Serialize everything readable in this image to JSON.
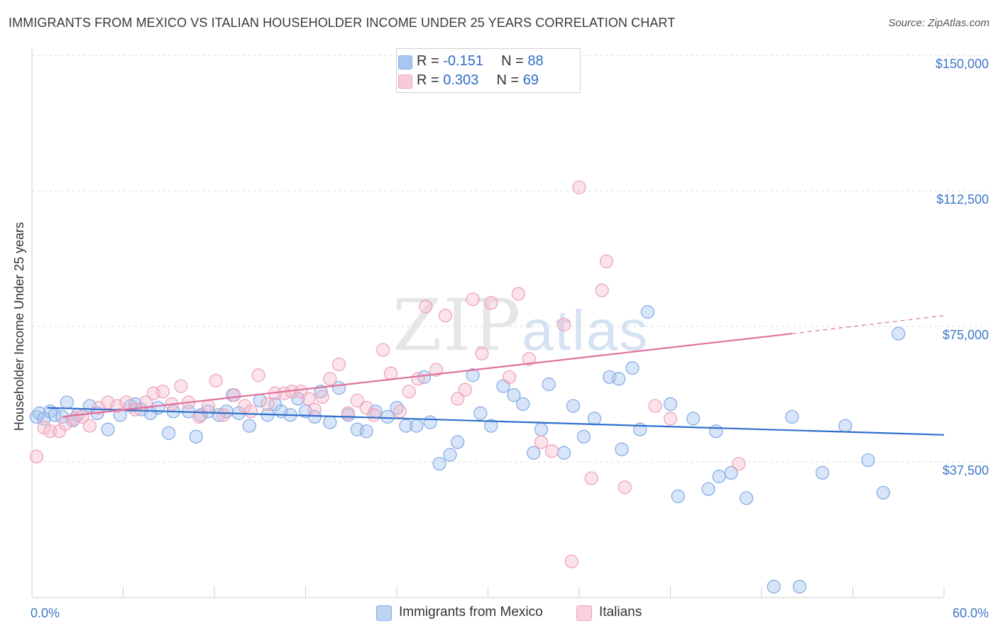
{
  "header": {
    "title": "IMMIGRANTS FROM MEXICO VS ITALIAN HOUSEHOLDER INCOME UNDER 25 YEARS CORRELATION CHART",
    "source": "Source: ZipAtlas.com"
  },
  "watermark": {
    "zip": "ZIP",
    "atlas": "atlas"
  },
  "legend": {
    "rows": [
      {
        "r_label": "R = ",
        "r_value": "-0.151",
        "n_label": "N = ",
        "n_value": "88",
        "color": "#a9c6ef"
      },
      {
        "r_label": "R = ",
        "r_value": "0.303",
        "n_label": "N = ",
        "n_value": "69",
        "color": "#f5b8cb"
      }
    ]
  },
  "bottom_legend": {
    "items": [
      {
        "label": "Immigrants from Mexico",
        "color": "#a9c6ef"
      },
      {
        "label": "Italians",
        "color": "#f5b8cb"
      }
    ]
  },
  "chart_data": {
    "type": "scatter",
    "ylabel": "Householder Income Under 25 years",
    "xlim": [
      0,
      60
    ],
    "ylim": [
      0,
      150000
    ],
    "x_tick_labels": [
      "0.0%",
      "60.0%"
    ],
    "y_ticks": [
      {
        "value": 37500,
        "label": "$37,500"
      },
      {
        "value": 75000,
        "label": "$75,000"
      },
      {
        "value": 112500,
        "label": "$112,500"
      },
      {
        "value": 150000,
        "label": "$150,000"
      }
    ],
    "grid": true,
    "series": [
      {
        "name": "Immigrants from Mexico",
        "color": "#6fa3e8",
        "trend": {
          "x0": 1,
          "y0": 52500,
          "x1": 60,
          "y1": 45000,
          "color": "#2f6fcc"
        },
        "points": [
          [
            0.3,
            50000
          ],
          [
            0.5,
            51000
          ],
          [
            0.8,
            49500
          ],
          [
            1.2,
            51500
          ],
          [
            1.5,
            50500
          ],
          [
            2.0,
            50000
          ],
          [
            2.3,
            54000
          ],
          [
            2.7,
            49000
          ],
          [
            3.0,
            50500
          ],
          [
            3.8,
            53000
          ],
          [
            4.3,
            51000
          ],
          [
            5.0,
            46500
          ],
          [
            5.8,
            50500
          ],
          [
            6.5,
            53000
          ],
          [
            6.8,
            53500
          ],
          [
            7.2,
            52000
          ],
          [
            7.8,
            51000
          ],
          [
            8.3,
            52500
          ],
          [
            9.0,
            45500
          ],
          [
            9.3,
            51500
          ],
          [
            10.3,
            51500
          ],
          [
            10.8,
            44500
          ],
          [
            11.1,
            50500
          ],
          [
            11.6,
            51500
          ],
          [
            12.3,
            50500
          ],
          [
            12.8,
            51500
          ],
          [
            13.2,
            56000
          ],
          [
            13.6,
            51000
          ],
          [
            14.3,
            47500
          ],
          [
            15.0,
            54500
          ],
          [
            15.5,
            50500
          ],
          [
            16.0,
            53500
          ],
          [
            16.4,
            51500
          ],
          [
            17.0,
            50500
          ],
          [
            17.5,
            55000
          ],
          [
            18.0,
            51500
          ],
          [
            18.6,
            50000
          ],
          [
            19.0,
            57000
          ],
          [
            19.6,
            48500
          ],
          [
            20.2,
            58000
          ],
          [
            20.8,
            50500
          ],
          [
            21.4,
            46500
          ],
          [
            22.0,
            46000
          ],
          [
            22.6,
            51500
          ],
          [
            23.4,
            50000
          ],
          [
            24.0,
            52500
          ],
          [
            24.6,
            47500
          ],
          [
            25.3,
            47500
          ],
          [
            25.8,
            61000
          ],
          [
            26.2,
            48500
          ],
          [
            26.8,
            37000
          ],
          [
            27.5,
            39500
          ],
          [
            28.0,
            43000
          ],
          [
            29.0,
            61500
          ],
          [
            29.5,
            51000
          ],
          [
            30.2,
            47500
          ],
          [
            31.0,
            58500
          ],
          [
            31.7,
            56000
          ],
          [
            32.3,
            53500
          ],
          [
            33.0,
            40000
          ],
          [
            33.5,
            46500
          ],
          [
            34.0,
            59000
          ],
          [
            35.0,
            40000
          ],
          [
            35.6,
            53000
          ],
          [
            36.3,
            44500
          ],
          [
            37.0,
            49500
          ],
          [
            38.0,
            61000
          ],
          [
            38.6,
            60500
          ],
          [
            38.8,
            41000
          ],
          [
            39.5,
            63500
          ],
          [
            40.0,
            46500
          ],
          [
            40.5,
            79000
          ],
          [
            42.0,
            53500
          ],
          [
            45.0,
            46000
          ],
          [
            42.5,
            28000
          ],
          [
            43.5,
            49500
          ],
          [
            44.5,
            30000
          ],
          [
            45.2,
            33500
          ],
          [
            46.0,
            34500
          ],
          [
            47.0,
            27500
          ],
          [
            48.8,
            3000
          ],
          [
            50.5,
            3000
          ],
          [
            50.0,
            50000
          ],
          [
            52.0,
            34500
          ],
          [
            53.5,
            47500
          ],
          [
            55.0,
            38000
          ],
          [
            56.0,
            29000
          ],
          [
            57.0,
            73000
          ]
        ]
      },
      {
        "name": "Italians",
        "color": "#f0a3bb",
        "trend": {
          "x0": 2,
          "y0": 50000,
          "x1": 50,
          "y1": 73000,
          "dash_to_x": 60,
          "dash_to_y": 78000,
          "color": "#e0709a"
        },
        "points": [
          [
            0.3,
            39000
          ],
          [
            0.8,
            47000
          ],
          [
            1.2,
            46000
          ],
          [
            1.8,
            46000
          ],
          [
            2.2,
            48000
          ],
          [
            2.8,
            49500
          ],
          [
            3.3,
            50000
          ],
          [
            3.8,
            47500
          ],
          [
            4.4,
            52500
          ],
          [
            5.0,
            54000
          ],
          [
            5.6,
            53000
          ],
          [
            6.2,
            54000
          ],
          [
            6.8,
            52000
          ],
          [
            7.5,
            54000
          ],
          [
            8.0,
            56500
          ],
          [
            8.6,
            57000
          ],
          [
            9.2,
            53500
          ],
          [
            9.8,
            58500
          ],
          [
            10.3,
            54000
          ],
          [
            11.0,
            50000
          ],
          [
            11.6,
            53000
          ],
          [
            12.1,
            60000
          ],
          [
            12.6,
            50500
          ],
          [
            13.3,
            56000
          ],
          [
            14.0,
            53000
          ],
          [
            14.4,
            51500
          ],
          [
            14.9,
            61500
          ],
          [
            15.5,
            53500
          ],
          [
            16.0,
            56500
          ],
          [
            16.6,
            56500
          ],
          [
            17.1,
            57000
          ],
          [
            17.7,
            57000
          ],
          [
            18.2,
            55000
          ],
          [
            18.6,
            52000
          ],
          [
            19.1,
            55500
          ],
          [
            19.6,
            60500
          ],
          [
            20.2,
            64500
          ],
          [
            20.8,
            51000
          ],
          [
            21.4,
            54500
          ],
          [
            22.0,
            52500
          ],
          [
            22.5,
            50500
          ],
          [
            23.1,
            68500
          ],
          [
            23.6,
            62000
          ],
          [
            24.2,
            51500
          ],
          [
            24.8,
            57000
          ],
          [
            25.4,
            60500
          ],
          [
            25.9,
            80500
          ],
          [
            26.6,
            63000
          ],
          [
            27.2,
            78000
          ],
          [
            28.0,
            55000
          ],
          [
            28.5,
            57500
          ],
          [
            29.0,
            82500
          ],
          [
            29.6,
            67500
          ],
          [
            30.2,
            81500
          ],
          [
            31.4,
            61000
          ],
          [
            32.0,
            84000
          ],
          [
            32.7,
            66000
          ],
          [
            33.5,
            43000
          ],
          [
            34.2,
            40500
          ],
          [
            35.0,
            75500
          ],
          [
            36.0,
            113500
          ],
          [
            36.8,
            33000
          ],
          [
            37.5,
            85000
          ],
          [
            37.8,
            93000
          ],
          [
            39.0,
            30500
          ],
          [
            35.5,
            10000
          ],
          [
            41.0,
            53000
          ],
          [
            42.0,
            49500
          ],
          [
            46.5,
            37000
          ]
        ]
      }
    ]
  }
}
